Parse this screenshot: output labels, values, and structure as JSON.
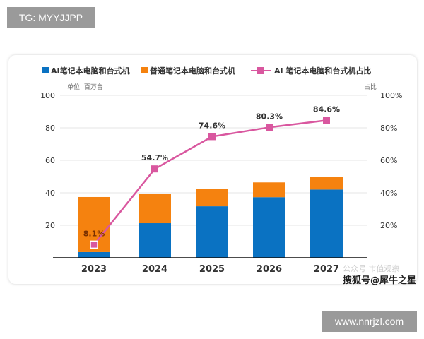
{
  "overlay": {
    "tg_label": "TG: MYYJJPP",
    "site_label": "www.nnrjzl.com",
    "watermark": "搜狐号@犀牛之星",
    "watermark2": "公众号 市值观察"
  },
  "chart_data": {
    "type": "bar",
    "stacked": true,
    "categories": [
      "2023",
      "2024",
      "2025",
      "2026",
      "2027"
    ],
    "series": [
      {
        "name": "AI笔记本电脑和台式机",
        "type": "bar",
        "color": "#0a72c2",
        "values": [
          3.5,
          21.3,
          31.7,
          37.3,
          42.0
        ]
      },
      {
        "name": "普通笔记本电脑和台式机",
        "type": "bar",
        "color": "#f5820f",
        "values": [
          33.9,
          17.9,
          10.6,
          9.1,
          7.6
        ]
      },
      {
        "name": "AI 笔记本电脑和台式机占比",
        "type": "line",
        "axis": "right",
        "color": "#d9579f",
        "values": [
          8.1,
          54.7,
          74.6,
          80.3,
          84.6
        ],
        "labels": [
          "8.1%",
          "54.7%",
          "74.6%",
          "80.3%",
          "84.6%"
        ]
      }
    ],
    "ylabel": "单位: 百万台",
    "y2label": "占比",
    "ylim": [
      0,
      100
    ],
    "y2lim": [
      0,
      100
    ],
    "yticks": [
      "20",
      "40",
      "60",
      "80",
      "100"
    ],
    "y2ticks": [
      "20%",
      "40%",
      "60%",
      "80%",
      "100%"
    ],
    "grid": true,
    "legend": "top"
  }
}
